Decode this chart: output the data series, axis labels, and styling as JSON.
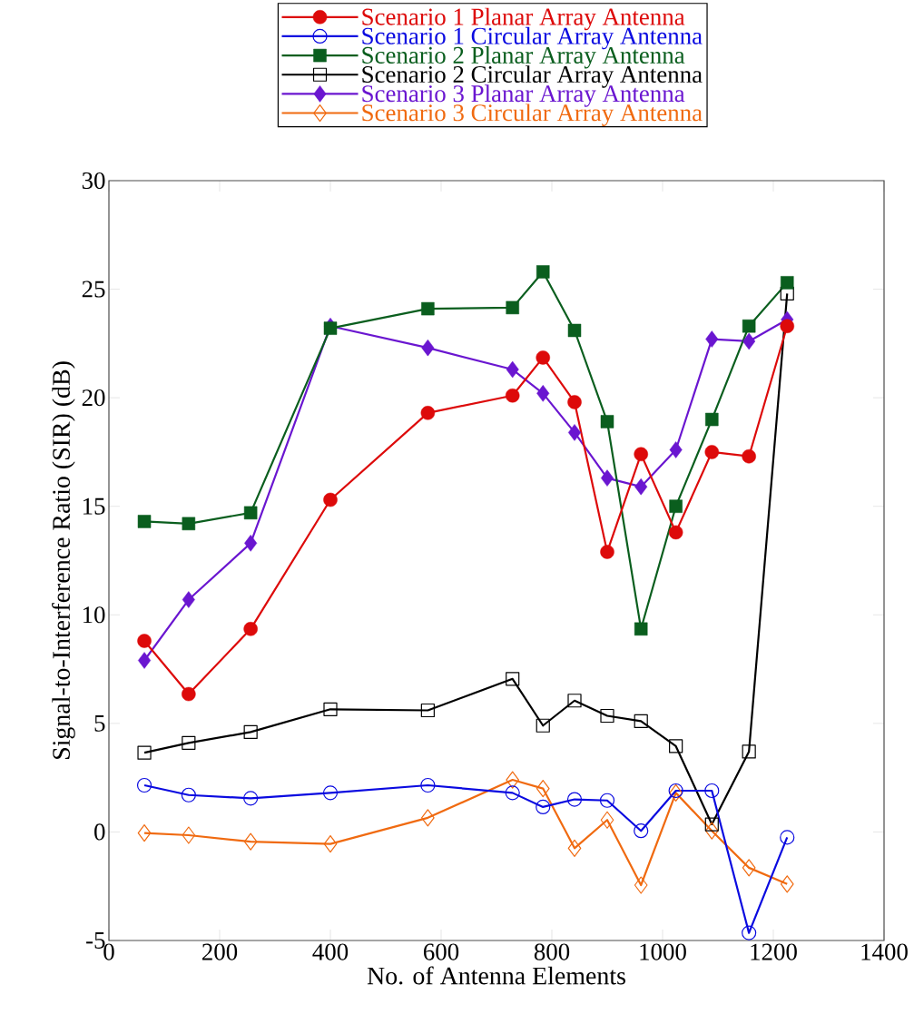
{
  "chart_data": {
    "type": "line",
    "xlabel": "No. of Antenna Elements",
    "ylabel": "Signal-to-Interference Ratio (SIR) (dB)",
    "x": [
      64,
      144,
      256,
      400,
      576,
      729,
      784,
      841,
      900,
      961,
      1024,
      1089,
      1156,
      1225
    ],
    "xlim": [
      0,
      1400
    ],
    "xticks": [
      0,
      200,
      400,
      600,
      800,
      1000,
      1200,
      1400
    ],
    "ylim": [
      -5,
      30
    ],
    "yticks": [
      -5,
      0,
      5,
      10,
      15,
      20,
      25,
      30
    ],
    "grid": false,
    "legend": "top",
    "series": [
      {
        "name": "Scenario 1 Planar Array Antenna",
        "color": "#dd0a0a",
        "marker": "circle",
        "values": [
          8.8,
          6.35,
          9.35,
          15.3,
          19.3,
          20.1,
          21.85,
          19.8,
          12.9,
          17.4,
          13.8,
          17.5,
          17.3,
          23.3
        ]
      },
      {
        "name": "Scenario 1 Circular Array Antenna",
        "color": "#0a0ae0",
        "marker": "circle",
        "values": [
          2.15,
          1.7,
          1.55,
          1.8,
          2.15,
          1.8,
          1.15,
          1.5,
          1.45,
          0.05,
          1.9,
          1.9,
          -4.65,
          -0.25
        ]
      },
      {
        "name": "Scenario 2 Planar Array Antenna",
        "color": "#0a5e1e",
        "marker": "square",
        "values": [
          14.3,
          14.2,
          14.7,
          23.2,
          24.1,
          24.15,
          25.8,
          23.1,
          18.9,
          9.35,
          15.0,
          19.0,
          23.3,
          25.3
        ]
      },
      {
        "name": "Scenario 2 Circular Array Antenna",
        "color": "#000000",
        "marker": "square",
        "values": [
          3.65,
          4.1,
          4.6,
          5.65,
          5.6,
          7.05,
          4.9,
          6.05,
          5.35,
          5.1,
          3.95,
          0.35,
          3.7,
          24.8
        ]
      },
      {
        "name": "Scenario 3 Planar Array Antenna",
        "color": "#6a16d0",
        "marker": "diamond",
        "values": [
          7.9,
          10.7,
          13.3,
          23.3,
          22.3,
          21.3,
          20.2,
          18.4,
          16.3,
          15.9,
          17.6,
          22.7,
          22.6,
          23.6
        ]
      },
      {
        "name": "Scenario 3 Circular Array Antenna",
        "color": "#f06a10",
        "marker": "diamond",
        "values": [
          -0.05,
          -0.15,
          -0.45,
          -0.55,
          0.65,
          2.4,
          2.0,
          -0.75,
          0.55,
          -2.45,
          1.8,
          0.05,
          -1.65,
          -2.4
        ]
      }
    ]
  }
}
